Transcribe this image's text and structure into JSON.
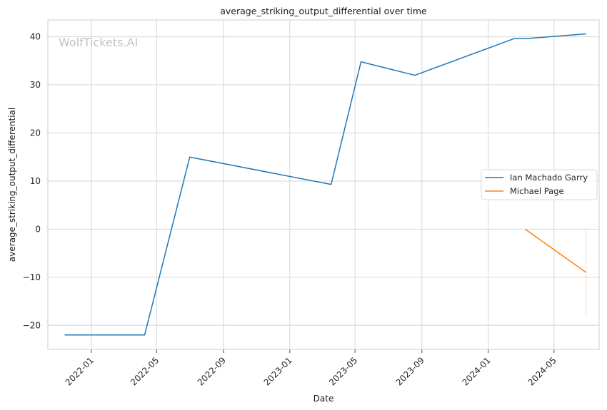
{
  "chart_data": {
    "type": "line",
    "title": "average_striking_output_differential over time",
    "xlabel": "Date",
    "ylabel": "average_striking_output_differential",
    "watermark": "WolfTickets.AI",
    "ylim": [
      -25,
      43.5
    ],
    "yticks": [
      -20,
      -10,
      0,
      10,
      20,
      30,
      40
    ],
    "xlim": [
      "2021-10-13",
      "2024-07-23"
    ],
    "xticks": [
      "2022-01",
      "2022-05",
      "2022-09",
      "2023-01",
      "2023-05",
      "2023-09",
      "2024-01",
      "2024-05"
    ],
    "grid": true,
    "legend_position": "center-right",
    "series": [
      {
        "name": "Ian Machado Garry",
        "color": "#1f77b4",
        "x": [
          "2021-11-13",
          "2022-04-09",
          "2022-07-01",
          "2023-03-18",
          "2023-05-12",
          "2023-08-19",
          "2024-02-17",
          "2024-03-08",
          "2024-06-29"
        ],
        "y": [
          -22,
          -22,
          15,
          9.3,
          34.8,
          32,
          39.6,
          39.6,
          40.6
        ]
      },
      {
        "name": "Michael Page",
        "color": "#ff7f0e",
        "x": [
          "2024-03-09",
          "2024-06-29"
        ],
        "y": [
          0,
          -9
        ]
      }
    ]
  }
}
